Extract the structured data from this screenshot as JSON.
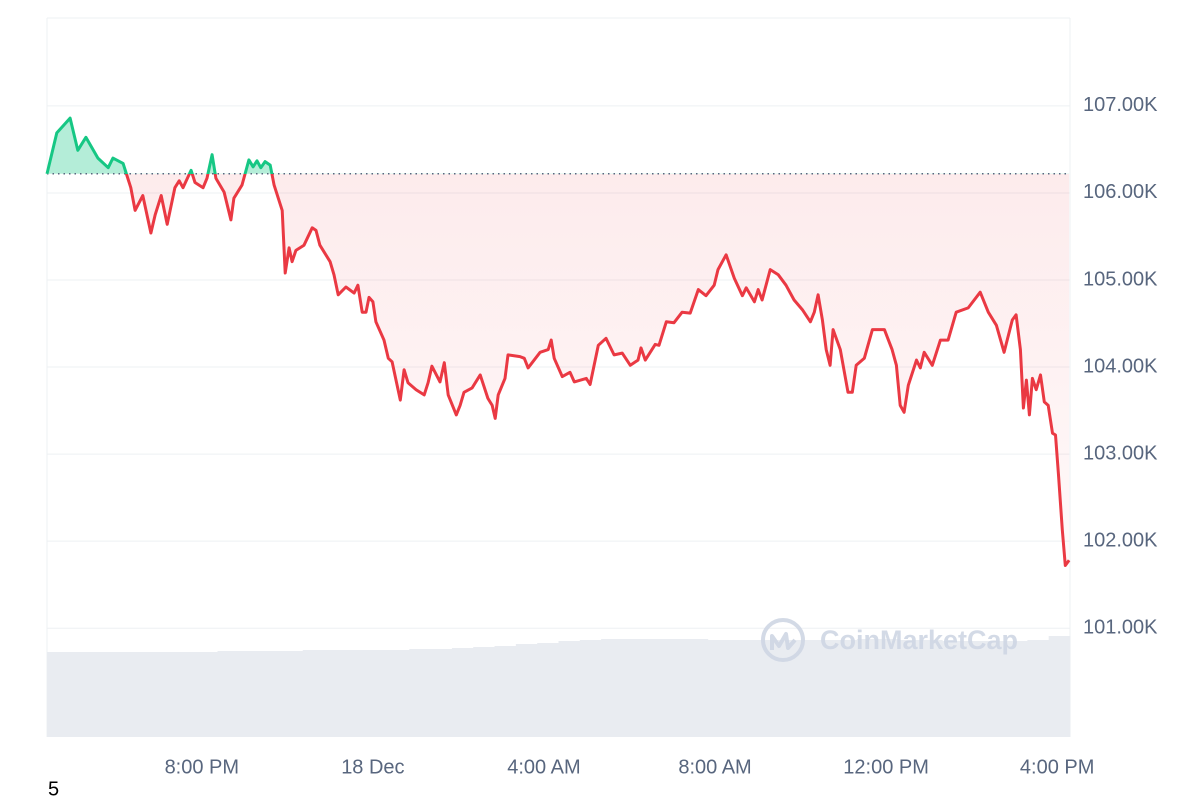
{
  "chart_data": {
    "type": "line",
    "x": [
      16.38,
      16.61,
      16.92,
      17.1,
      17.29,
      17.57,
      17.81,
      17.92,
      18.16,
      18.34,
      18.44,
      18.62,
      18.81,
      18.91,
      19.05,
      19.19,
      19.37,
      19.47,
      19.56,
      19.75,
      19.84,
      20.03,
      20.12,
      20.24,
      20.33,
      20.52,
      20.68,
      20.75,
      20.94,
      21.1,
      21.2,
      21.29,
      21.38,
      21.48,
      21.6,
      21.69,
      21.88,
      21.95,
      22.04,
      22.11,
      22.2,
      22.39,
      22.58,
      22.67,
      22.76,
      23.0,
      23.09,
      23.19,
      23.37,
      23.56,
      23.65,
      23.75,
      23.84,
      23.91,
      24.0,
      24.07,
      24.26,
      24.36,
      24.45,
      24.54,
      24.64,
      24.73,
      24.82,
      25.01,
      25.2,
      25.29,
      25.38,
      25.57,
      25.67,
      25.76,
      25.95,
      26.04,
      26.13,
      26.32,
      26.51,
      26.69,
      26.79,
      26.86,
      26.93,
      27.09,
      27.16,
      27.44,
      27.54,
      27.63,
      27.91,
      28.1,
      28.17,
      28.24,
      28.43,
      28.61,
      28.71,
      28.99,
      29.08,
      29.27,
      29.45,
      29.64,
      29.83,
      30.02,
      30.2,
      30.27,
      30.37,
      30.6,
      30.69,
      30.86,
      31.04,
      31.23,
      31.42,
      31.61,
      31.79,
      31.98,
      32.07,
      32.26,
      32.45,
      32.64,
      32.73,
      32.92,
      33.01,
      33.1,
      33.29,
      33.48,
      33.66,
      33.85,
      34.04,
      34.23,
      34.32,
      34.41,
      34.51,
      34.6,
      34.69,
      34.76,
      34.93,
      35.11,
      35.21,
      35.3,
      35.49,
      35.68,
      35.96,
      36.14,
      36.24,
      36.33,
      36.42,
      36.52,
      36.71,
      36.8,
      36.89,
      37.08,
      37.27,
      37.45,
      37.64,
      37.92,
      38.2,
      38.39,
      38.58,
      38.76,
      38.95,
      39.04,
      39.14,
      39.21,
      39.28,
      39.35,
      39.42,
      39.51,
      39.61,
      39.7,
      39.79,
      39.89,
      39.96,
      40.03,
      40.12,
      40.19,
      40.28
    ],
    "values": [
      106220,
      106690,
      106860,
      106490,
      106640,
      106400,
      106290,
      106400,
      106340,
      106060,
      105800,
      105970,
      105540,
      105750,
      105970,
      105640,
      106060,
      106140,
      106060,
      106260,
      106120,
      106060,
      106170,
      106440,
      106170,
      106010,
      105690,
      105940,
      106090,
      106380,
      106300,
      106370,
      106290,
      106360,
      106320,
      106090,
      105800,
      105080,
      105370,
      105210,
      105340,
      105400,
      105600,
      105570,
      105400,
      105210,
      105060,
      104830,
      104920,
      104850,
      104940,
      104630,
      104630,
      104800,
      104750,
      104520,
      104310,
      104100,
      104060,
      103850,
      103620,
      103970,
      103820,
      103740,
      103680,
      103820,
      104010,
      103830,
      104050,
      103680,
      103450,
      103560,
      103710,
      103760,
      103910,
      103640,
      103560,
      103410,
      103680,
      103870,
      104140,
      104120,
      104100,
      103990,
      104170,
      104200,
      104310,
      104100,
      103890,
      103940,
      103830,
      103870,
      103800,
      104250,
      104330,
      104140,
      104160,
      104020,
      104080,
      104220,
      104080,
      104260,
      104250,
      104520,
      104510,
      104630,
      104620,
      104890,
      104820,
      104940,
      105120,
      105290,
      105020,
      104820,
      104910,
      104750,
      104890,
      104770,
      105120,
      105060,
      104940,
      104770,
      104660,
      104520,
      104630,
      104830,
      104540,
      104200,
      104020,
      104430,
      104200,
      103710,
      103710,
      104020,
      104100,
      104430,
      104430,
      104200,
      104020,
      103560,
      103480,
      103790,
      104080,
      103990,
      104170,
      104020,
      104310,
      104310,
      104630,
      104680,
      104860,
      104630,
      104480,
      104170,
      104540,
      104600,
      104200,
      103530,
      103850,
      103450,
      103870,
      103740,
      103910,
      103600,
      103560,
      103240,
      103220,
      102760,
      102130,
      101720,
      101780
    ],
    "baseline": 106220,
    "color_up": "#16c784",
    "color_down": "#ea3943",
    "xlim": [
      16.38,
      40.3
    ],
    "xticks": [
      {
        "value": 20,
        "label": "8:00 PM"
      },
      {
        "value": 24,
        "label": "18 Dec"
      },
      {
        "value": 28,
        "label": "4:00 AM"
      },
      {
        "value": 32,
        "label": "8:00 AM"
      },
      {
        "value": 36,
        "label": "12:00 PM"
      },
      {
        "value": 40,
        "label": "4:00 PM"
      }
    ],
    "ylim": [
      99750,
      108010
    ],
    "yticks": [
      {
        "value": 101000,
        "label": "101.00K"
      },
      {
        "value": 102000,
        "label": "102.00K"
      },
      {
        "value": 103000,
        "label": "103.00K"
      },
      {
        "value": 104000,
        "label": "104.00K"
      },
      {
        "value": 105000,
        "label": "105.00K"
      },
      {
        "value": 106000,
        "label": "106.00K"
      },
      {
        "value": 107000,
        "label": "107.00K"
      }
    ],
    "grid": true,
    "volume": {
      "color": "#e9ecf1",
      "values": [
        85,
        85,
        85,
        85,
        85,
        85,
        85,
        85,
        86,
        86,
        86,
        86,
        87,
        87,
        87,
        87,
        87,
        88,
        88,
        89,
        90,
        91,
        93,
        94,
        96,
        97,
        98,
        98,
        98,
        98,
        98,
        97,
        97,
        97,
        97,
        97,
        97,
        97,
        98,
        98,
        97,
        97,
        96,
        96,
        96,
        96,
        97,
        101
      ]
    },
    "watermark": "CoinMarketCap"
  },
  "page_label": "5"
}
